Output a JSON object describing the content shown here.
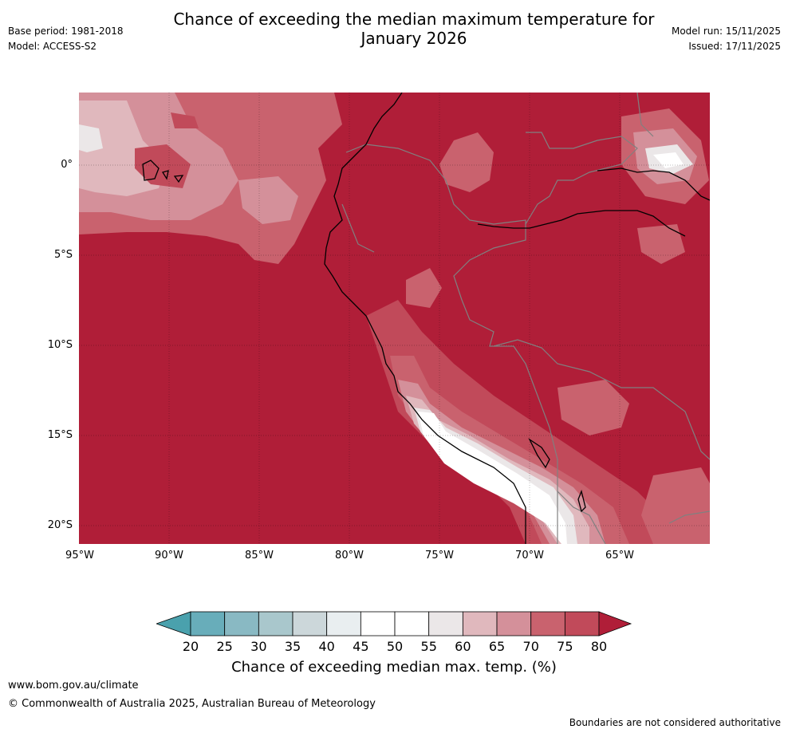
{
  "header": {
    "title_line1": "Chance of exceeding the median maximum temperature for",
    "title_line2": "January 2026",
    "base_period": "Base period: 1981-2018",
    "model": "Model: ACCESS-S2",
    "model_run": "Model run: 15/11/2025",
    "issued": "Issued: 17/11/2025"
  },
  "map": {
    "latitude_labels": [
      "0°",
      "5°S",
      "10°S",
      "15°S",
      "20°S"
    ],
    "longitude_labels": [
      "95°W",
      "90°W",
      "85°W",
      "80°W",
      "75°W",
      "70°W",
      "65°W"
    ],
    "region": "Western South America and East Pacific",
    "colors": {
      "background_above_80": "#b01e38",
      "band_75_80": "#c14a5a",
      "band_70_75": "#c9626e",
      "band_65_70": "#d4909a",
      "band_60_65": "#e0b8bd",
      "band_55_60": "#ebe7e8",
      "band_45_55": "#ffffff",
      "border": "#808080",
      "coast": "#000000"
    }
  },
  "colorbar": {
    "ticks": [
      "20",
      "25",
      "30",
      "35",
      "40",
      "45",
      "50",
      "55",
      "60",
      "65",
      "70",
      "75",
      "80"
    ],
    "colors": [
      "#68adba",
      "#89b9c3",
      "#a9c7cc",
      "#ccd7da",
      "#e9eef0",
      "#ffffff",
      "#ffffff",
      "#ebe7e8",
      "#e0b8bd",
      "#d4909a",
      "#c9626e",
      "#c14a5a"
    ],
    "low_arrow_color": "#4aa1ad",
    "high_arrow_color": "#b01e38",
    "label": "Chance of exceeding median max. temp. (%)"
  },
  "footer": {
    "website": "www.bom.gov.au/climate",
    "copyright": "© Commonwealth of Australia 2025, Australian Bureau of Meteorology",
    "disclaimer": "Boundaries are not considered authoritative"
  }
}
